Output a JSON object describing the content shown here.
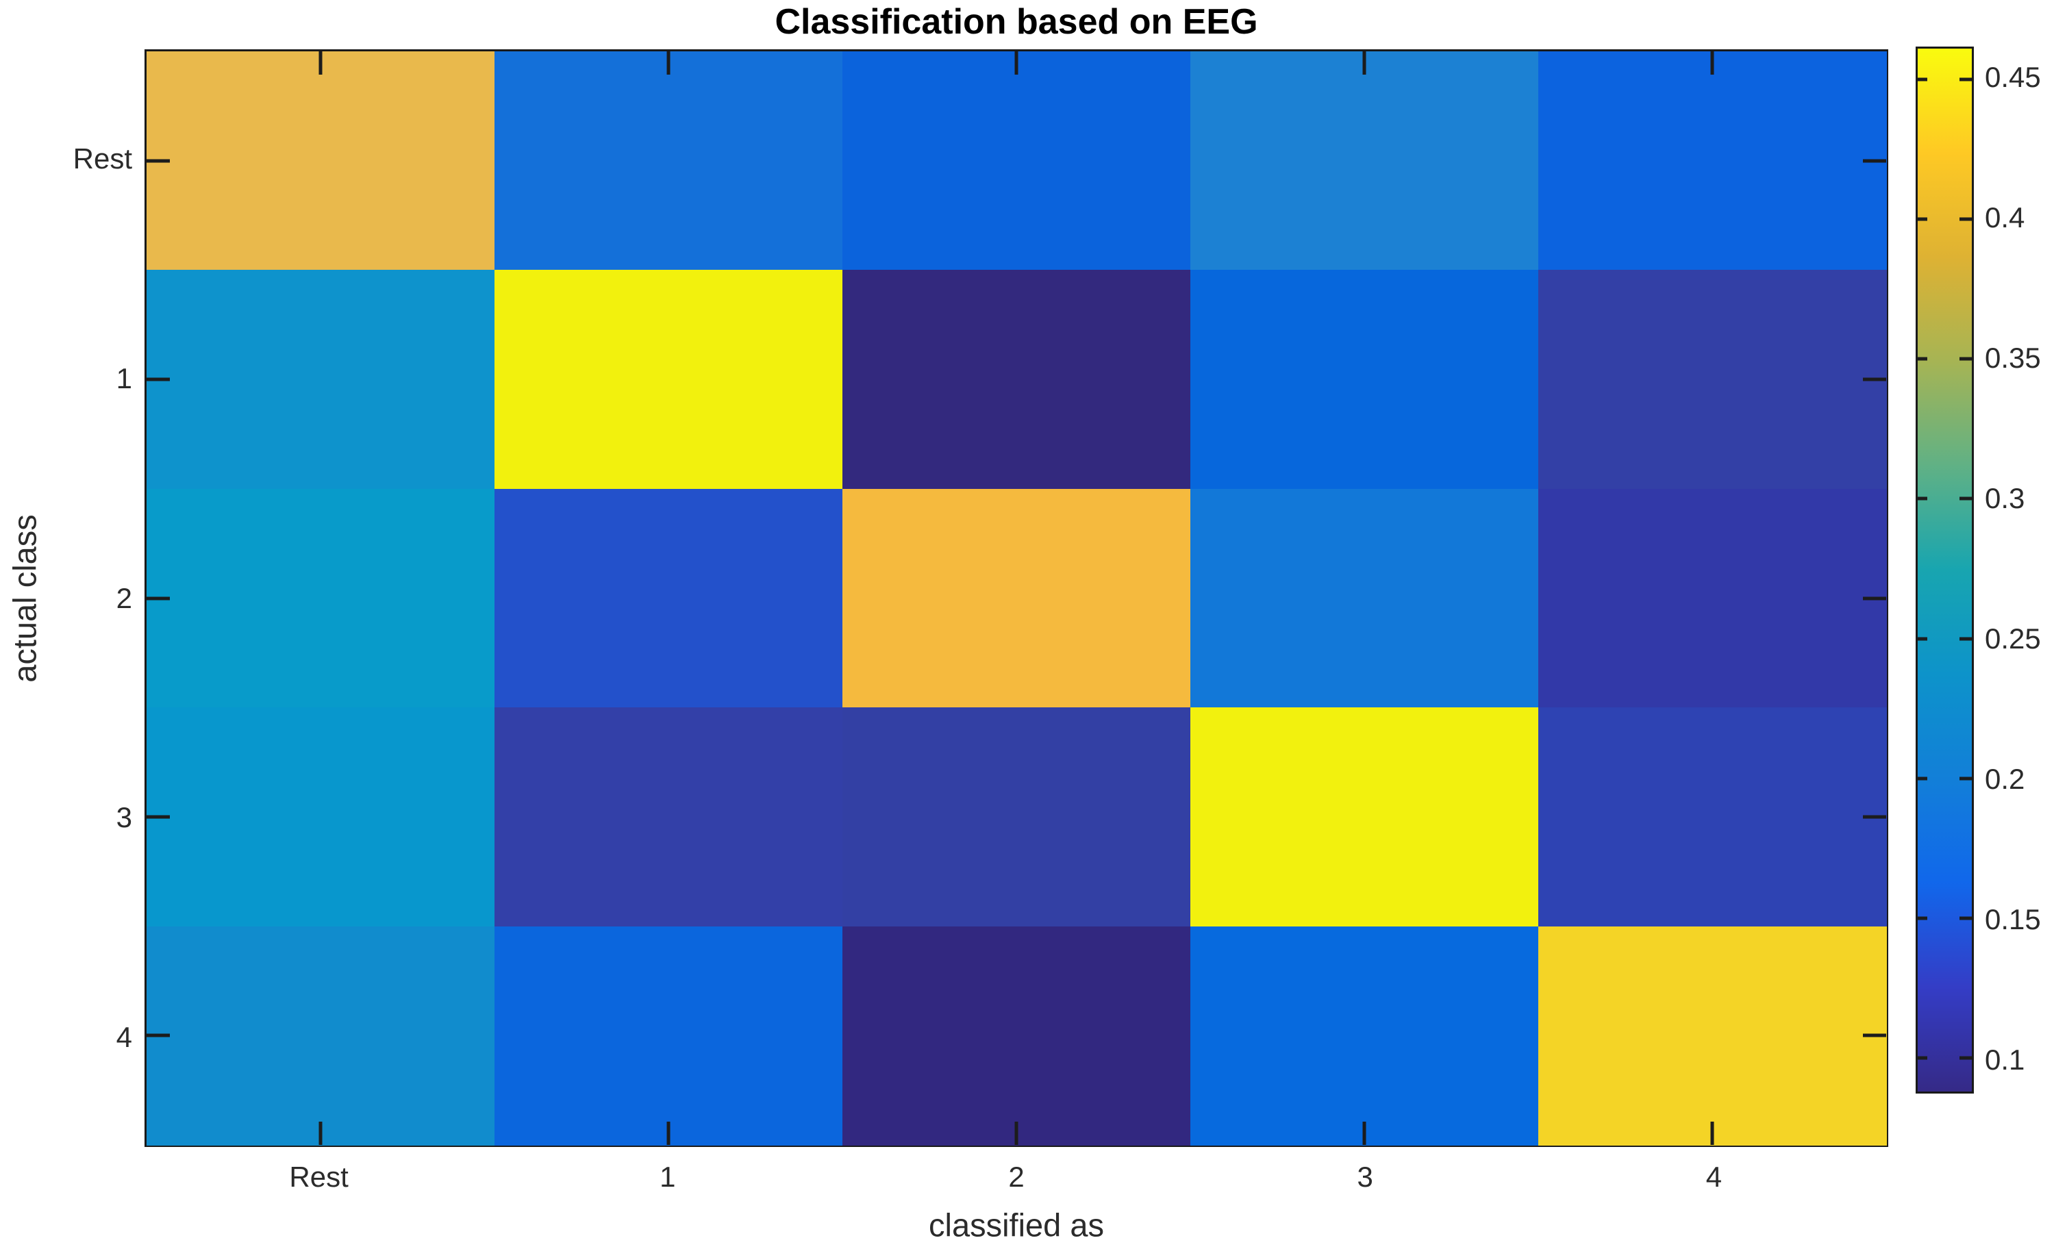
{
  "title": "Classification based on EEG",
  "axes": {
    "xlabel": "classified as",
    "ylabel": "actual class",
    "x_ticklabels": [
      "Rest",
      "1",
      "2",
      "3",
      "4"
    ],
    "y_ticklabels": [
      "Rest",
      "1",
      "2",
      "3",
      "4"
    ]
  },
  "colorbar": {
    "tick_labels": [
      "0.45",
      "0.4",
      "0.35",
      "0.3",
      "0.25",
      "0.2",
      "0.15",
      "0.1"
    ],
    "tick_values": [
      0.45,
      0.4,
      0.35,
      0.3,
      0.25,
      0.2,
      0.15,
      0.1
    ],
    "value_range_bottom_top": [
      0.088,
      0.461
    ],
    "gradient_stops_bottom_to_top": [
      "#352a87",
      "#343dc6",
      "#1167eb",
      "#127fd8",
      "#0d93ca",
      "#18a5b0",
      "#60b185",
      "#a6b454",
      "#deb233",
      "#fec924",
      "#f9fb0e"
    ]
  },
  "chart_data": {
    "type": "heatmap",
    "title": "Classification based on EEG",
    "xlabel": "classified as",
    "ylabel": "actual class",
    "columns": [
      "Rest",
      "1",
      "2",
      "3",
      "4"
    ],
    "rows": [
      "Rest",
      "1",
      "2",
      "3",
      "4"
    ],
    "values_estimated": [
      [
        0.4,
        0.18,
        0.16,
        0.2,
        0.16
      ],
      [
        0.24,
        0.46,
        0.09,
        0.16,
        0.12
      ],
      [
        0.25,
        0.14,
        0.4,
        0.19,
        0.11
      ],
      [
        0.24,
        0.11,
        0.11,
        0.46,
        0.12
      ],
      [
        0.22,
        0.16,
        0.09,
        0.17,
        0.43
      ]
    ],
    "cell_colors": [
      [
        "#e9b94c",
        "#1470d9",
        "#0b63dc",
        "#1c81d3",
        "#0c63df"
      ],
      [
        "#0e93cc",
        "#f2f10d",
        "#33297e",
        "#0767dc",
        "#3340a6"
      ],
      [
        "#089bca",
        "#2351cb",
        "#f5ba3e",
        "#1278d8",
        "#3239a8"
      ],
      [
        "#0897cd",
        "#3340a8",
        "#3340a4",
        "#f2f10e",
        "#2e43b3"
      ],
      [
        "#118ccd",
        "#0b66dd",
        "#322880",
        "#076ade",
        "#f4d426"
      ]
    ],
    "colormap": "parula",
    "color_range": [
      0.088,
      0.461
    ],
    "legend_position": "right-colorbar",
    "grid": false
  },
  "colors": {
    "frame": "#1a1a1a",
    "tick_text": "#2b2b2b",
    "title_text": "#000000",
    "background": "#ffffff"
  }
}
